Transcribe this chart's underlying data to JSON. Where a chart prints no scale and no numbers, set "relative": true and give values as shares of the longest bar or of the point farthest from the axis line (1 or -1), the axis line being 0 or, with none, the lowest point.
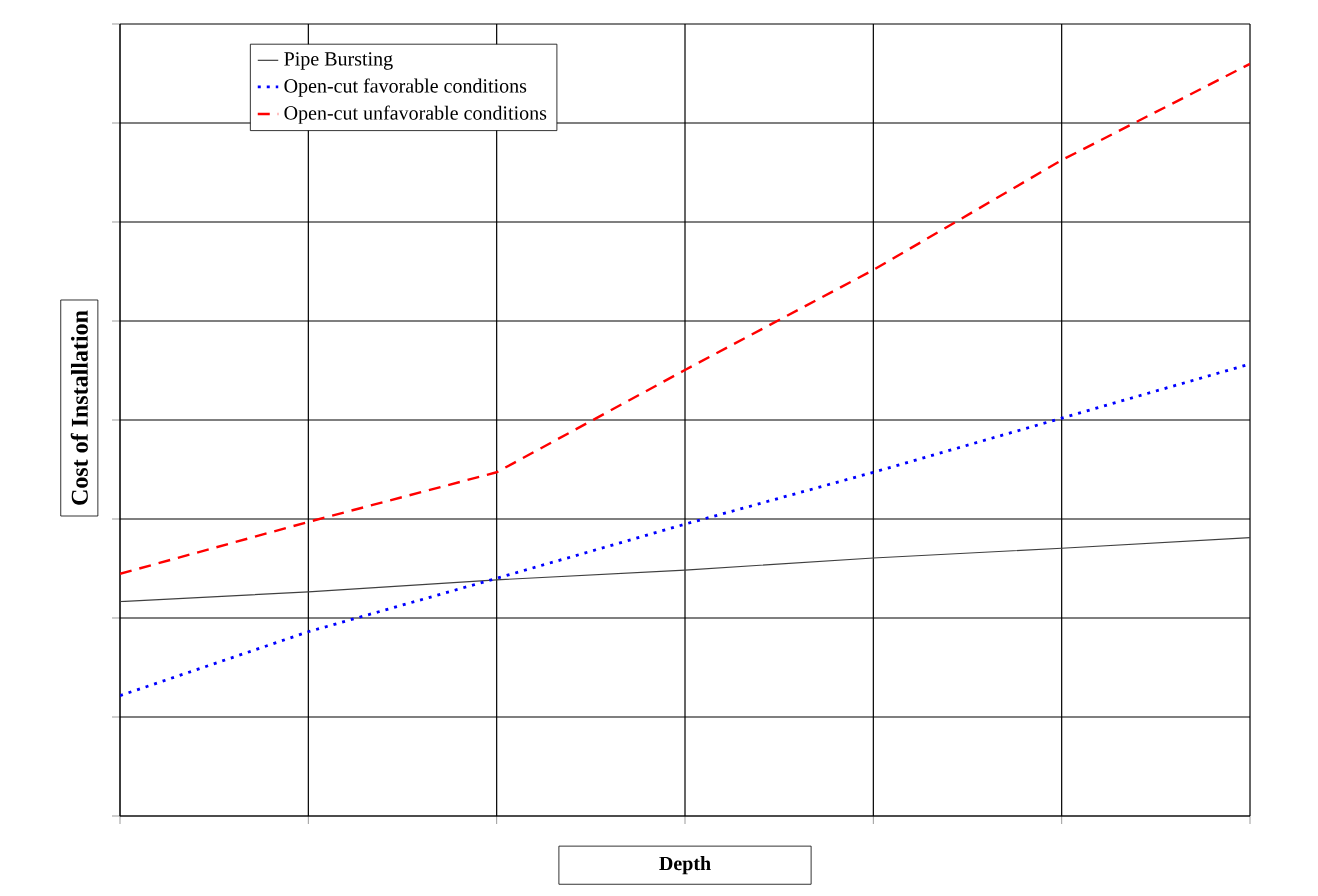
{
  "chart_data": {
    "type": "line",
    "relative": true,
    "xlabel": "Depth",
    "ylabel": "Cost of Installation",
    "categories": [
      null,
      null,
      null,
      null,
      null,
      null,
      null
    ],
    "grid": true,
    "legend": "top left",
    "tick_labels": false,
    "series": [
      {
        "name": "Pipe Bursting",
        "color": "#404040",
        "line_style": "solid",
        "values": [
          0.285,
          0.298,
          0.314,
          0.327,
          0.343,
          0.356,
          0.37
        ]
      },
      {
        "name": "Open-cut favorable conditions",
        "color": "#0000ff",
        "line_style": "dotted",
        "values": [
          0.16,
          0.245,
          0.316,
          0.388,
          0.457,
          0.529,
          0.601
        ]
      },
      {
        "name": "Open-cut unfavorable conditions",
        "color": "#ff0000",
        "line_style": "dashed",
        "values": [
          0.322,
          0.391,
          0.457,
          0.593,
          0.726,
          0.872,
          1.0
        ]
      }
    ]
  }
}
